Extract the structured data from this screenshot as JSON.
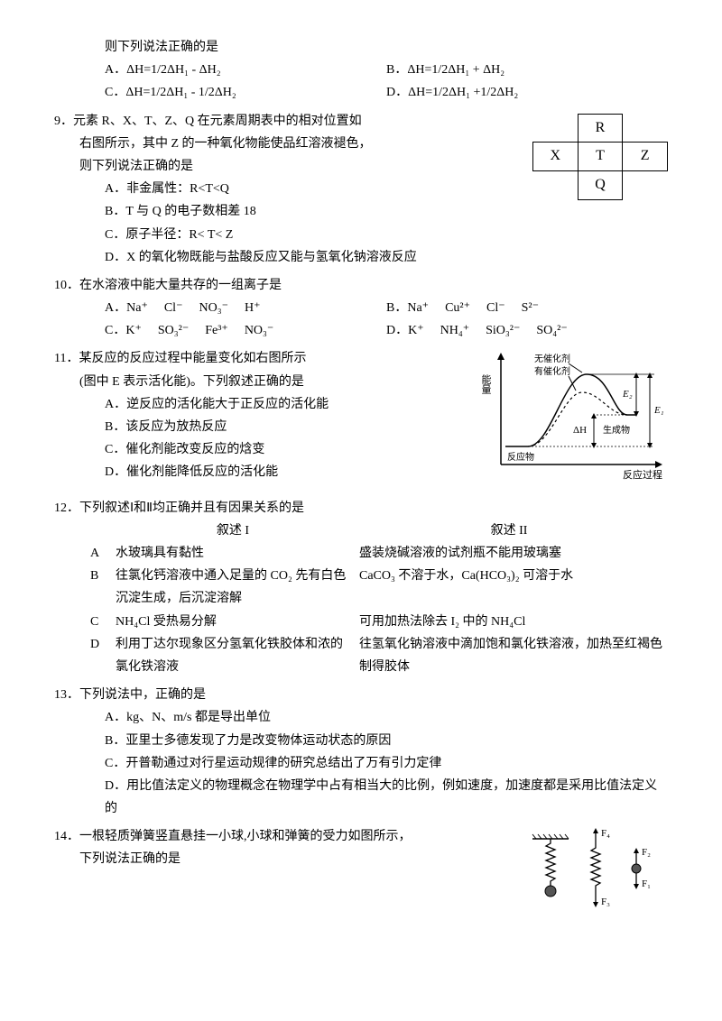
{
  "q8": {
    "cont_stem": "则下列说法正确的是",
    "A": "A．ΔH=1/2ΔH₁ - ΔH₂",
    "B": "B．ΔH=1/2ΔH₁ + ΔH₂",
    "C": "C．ΔH=1/2ΔH₁ - 1/2ΔH₂",
    "D": "D．ΔH=1/2ΔH₁ +1/2ΔH₂"
  },
  "q9": {
    "num": "9．",
    "stem1": "元素 R、X、T、Z、Q 在元素周期表中的相对位置如",
    "stem2": "右图所示，其中 Z 的一种氧化物能使品红溶液褪色，",
    "stem3": "则下列说法正确的是",
    "A": "A．非金属性：R<T<Q",
    "B": "B．T 与 Q 的电子数相差 18",
    "C": "C．原子半径：R< T< Z",
    "D": "D．X 的氧化物既能与盐酸反应又能与氢氧化钠溶液反应",
    "table": {
      "R": "R",
      "X": "X",
      "T": "T",
      "Z": "Z",
      "Q": "Q"
    }
  },
  "q10": {
    "num": "10．",
    "stem": "在水溶液中能大量共存的一组离子是",
    "A": {
      "label": "A．",
      "ions": [
        "Na⁺",
        "Cl⁻",
        "NO₃⁻",
        "H⁺"
      ]
    },
    "B": {
      "label": "B．",
      "ions": [
        "Na⁺",
        "Cu²⁺",
        "Cl⁻",
        "S²⁻"
      ]
    },
    "C": {
      "label": "C．",
      "ions": [
        "K⁺",
        "SO₃²⁻",
        "Fe³⁺",
        "NO₃⁻"
      ]
    },
    "D": {
      "label": "D．",
      "ions": [
        "K⁺",
        "NH₄⁺",
        "SiO₃²⁻",
        "SO₄²⁻"
      ]
    }
  },
  "q11": {
    "num": "11．",
    "stem1": "某反应的反应过程中能量变化如右图所示",
    "stem2": "(图中 E 表示活化能)。下列叙述正确的是",
    "A": "A．逆反应的活化能大于正反应的活化能",
    "B": "B．该反应为放热反应",
    "C": "C．催化剂能改变反应的焓变",
    "D": "D．催化剂能降低反应的活化能",
    "diagram": {
      "ylabel": "能量",
      "xlabel": "反应过程",
      "no_cat": "无催化剂",
      "with_cat": "有催化剂",
      "reactant": "反应物",
      "product": "生成物",
      "dH": "ΔH",
      "E1": "E₁",
      "E2": "E₂",
      "stroke": "#000000",
      "bg": "#ffffff",
      "fontsize": 11
    }
  },
  "q12": {
    "num": "12．",
    "stem": "下列叙述Ⅰ和Ⅱ均正确并且有因果关系的是",
    "head1": "叙述 I",
    "head2": "叙述 II",
    "rows": [
      {
        "k": "A",
        "s1": "水玻璃具有黏性",
        "s2": "盛装烧碱溶液的试剂瓶不能用玻璃塞"
      },
      {
        "k": "B",
        "s1": "往氯化钙溶液中通入足量的 CO₂ 先有白色沉淀生成，后沉淀溶解",
        "s2": "CaCO₃ 不溶于水，Ca(HCO₃)₂ 可溶于水"
      },
      {
        "k": "C",
        "s1": "NH₄Cl 受热易分解",
        "s2": "可用加热法除去 I₂ 中的 NH₄Cl"
      },
      {
        "k": "D",
        "s1": "利用丁达尔现象区分氢氧化铁胶体和浓的氯化铁溶液",
        "s2": "往氢氧化钠溶液中滴加饱和氯化铁溶液，加热至红褐色制得胶体"
      }
    ]
  },
  "q13": {
    "num": "13．",
    "stem": "下列说法中，正确的是",
    "A": "A．kg、N、m/s 都是导出单位",
    "B": "B．亚里士多德发现了力是改变物体运动状态的原因",
    "C": "C．开普勒通过对行星运动规律的研究总结出了万有引力定律",
    "D": "D．用比值法定义的物理概念在物理学中占有相当大的比例，例如速度，加速度都是采用比值法定义的"
  },
  "q14": {
    "num": "14．",
    "stem1": "一根轻质弹簧竖直悬挂一小球,小球和弹簧的受力如图所示，",
    "stem2": "下列说法正确的是",
    "diagram": {
      "F1": "F₁",
      "F2": "F₂",
      "F3": "F₃",
      "F4": "F₄",
      "stroke": "#000000"
    }
  }
}
